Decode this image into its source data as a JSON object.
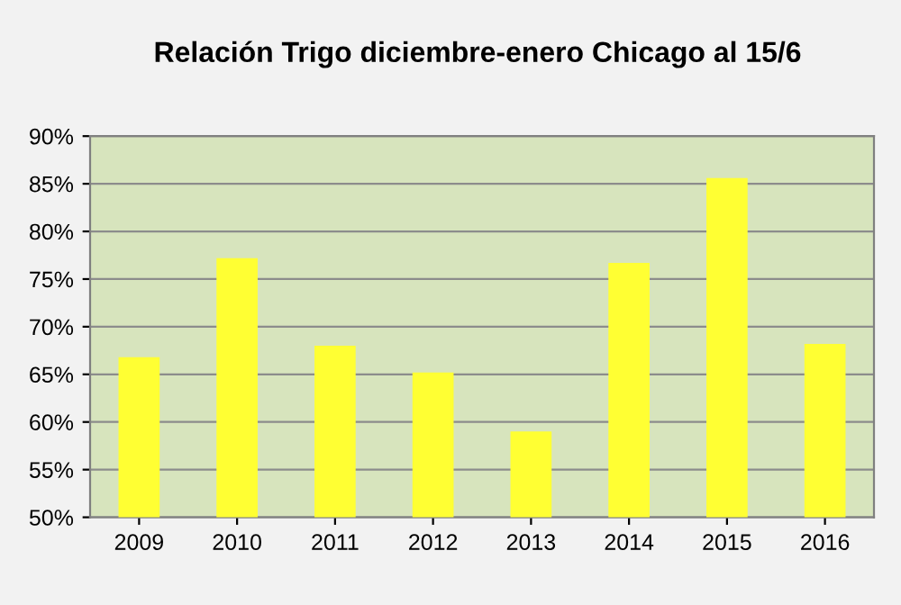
{
  "chart_data": {
    "type": "bar",
    "title": "Relación Trigo diciembre-enero Chicago al 15/6",
    "categories": [
      "2009",
      "2010",
      "2011",
      "2012",
      "2013",
      "2014",
      "2015",
      "2016"
    ],
    "values": [
      66.8,
      77.2,
      68.0,
      65.2,
      59.0,
      76.7,
      85.6,
      68.2
    ],
    "color": "#ffff33",
    "ylim": [
      50,
      90
    ],
    "yticks": [
      {
        "value": 50,
        "label": "50%"
      },
      {
        "value": 55,
        "label": "55%"
      },
      {
        "value": 60,
        "label": "60%"
      },
      {
        "value": 65,
        "label": "65%"
      },
      {
        "value": 70,
        "label": "70%"
      },
      {
        "value": 75,
        "label": "75%"
      },
      {
        "value": 80,
        "label": "80%"
      },
      {
        "value": 85,
        "label": "85%"
      },
      {
        "value": 90,
        "label": "90%"
      }
    ],
    "grid": "y"
  }
}
